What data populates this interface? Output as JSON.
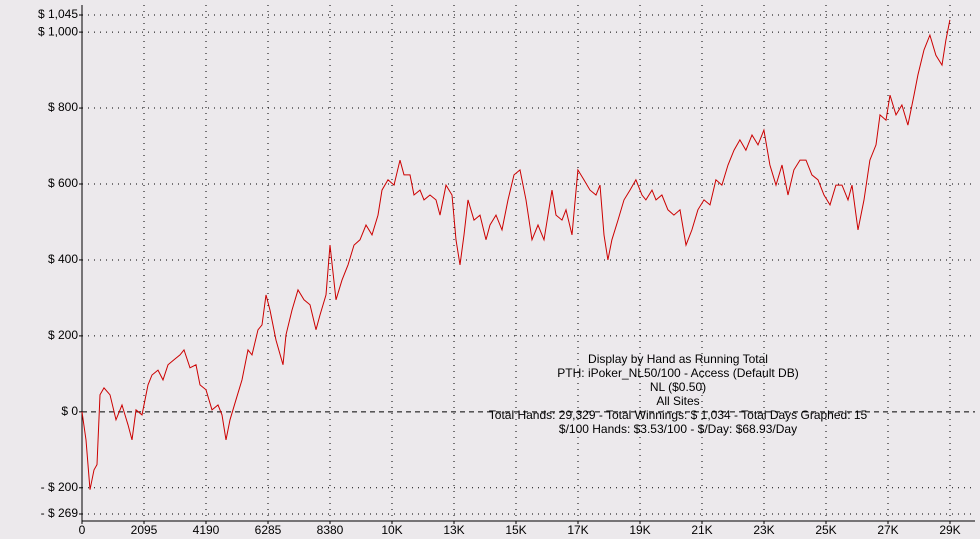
{
  "chart_data": {
    "type": "line",
    "annotation": [
      "Display by Hand as Running Total",
      "PTH: iPoker_NL50/100 - Access (Default DB)",
      "NL ($0.50)",
      "All Sites",
      "Total Hands: 29,329 - Total Winnings: $ 1,034 - Total Days Graphed: 15",
      "$/100 Hands: $3.53/100 - $/Day: $68.93/Day"
    ],
    "x": [
      0,
      135,
      270,
      406,
      507,
      608,
      743,
      946,
      1149,
      1351,
      1554,
      1689,
      1824,
      2027,
      2230,
      2365,
      2568,
      2737,
      2906,
      3109,
      3311,
      3446,
      3649,
      3852,
      3987,
      4190,
      4393,
      4595,
      4730,
      4865,
      5000,
      5203,
      5406,
      5609,
      5744,
      5947,
      6082,
      6217,
      6352,
      6555,
      6791,
      6893,
      7096,
      7298,
      7501,
      7704,
      7907,
      8042,
      8244,
      8380,
      8582,
      8785,
      8988,
      9190,
      9393,
      9596,
      9799,
      10001,
      10136,
      10339,
      10542,
      10745,
      10880,
      11082,
      11217,
      11420,
      11555,
      11758,
      11961,
      12096,
      12299,
      12501,
      12637,
      12772,
      12907,
      13042,
      13245,
      13447,
      13650,
      13785,
      13988,
      14191,
      14393,
      14596,
      14799,
      15002,
      15204,
      15407,
      15610,
      15745,
      15880,
      16015,
      16218,
      16353,
      16556,
      16758,
      16961,
      17164,
      17367,
      17502,
      17637,
      17772,
      17907,
      18110,
      18313,
      18516,
      18718,
      18921,
      19056,
      19259,
      19394,
      19596,
      19799,
      20002,
      20205,
      20408,
      20610,
      20813,
      21016,
      21219,
      21421,
      21624,
      21827,
      22030,
      22232,
      22435,
      22638,
      22841,
      23043,
      23246,
      23449,
      23652,
      23855,
      24057,
      24260,
      24463,
      24665,
      24868,
      25071,
      25274,
      25476,
      25679,
      25882,
      26017,
      26220,
      26423,
      26625,
      26828,
      26963,
      27166,
      27301,
      27504,
      27706,
      27909,
      28112,
      28247,
      28450,
      28652,
      28855,
      29058,
      29193,
      29328
    ],
    "series": [
      {
        "name": "Running Total",
        "color": "#cc0000",
        "values": [
          0,
          -74,
          -205,
          -153,
          -139,
          45,
          63,
          45,
          -21,
          18,
          -34,
          -74,
          5,
          -8,
          71,
          97,
          110,
          84,
          124,
          137,
          150,
          163,
          116,
          124,
          71,
          58,
          5,
          18,
          -8,
          -74,
          -21,
          32,
          84,
          163,
          150,
          216,
          229,
          308,
          268,
          189,
          124,
          203,
          268,
          321,
          295,
          282,
          216,
          255,
          308,
          439,
          295,
          347,
          387,
          439,
          453,
          492,
          466,
          518,
          584,
          611,
          597,
          663,
          624,
          624,
          571,
          584,
          558,
          571,
          558,
          518,
          597,
          571,
          453,
          387,
          466,
          558,
          505,
          518,
          453,
          492,
          518,
          479,
          558,
          624,
          637,
          558,
          453,
          492,
          453,
          518,
          584,
          518,
          505,
          532,
          466,
          637,
          611,
          584,
          571,
          597,
          466,
          400,
          453,
          505,
          558,
          584,
          611,
          571,
          558,
          584,
          558,
          571,
          532,
          518,
          532,
          439,
          479,
          532,
          558,
          545,
          611,
          597,
          650,
          689,
          716,
          689,
          729,
          703,
          742,
          650,
          597,
          650,
          571,
          637,
          663,
          663,
          624,
          611,
          571,
          545,
          597,
          597,
          558,
          597,
          479,
          558,
          663,
          703,
          782,
          768,
          834,
          782,
          808,
          755,
          834,
          887,
          953,
          992,
          939,
          913,
          979,
          1032
        ]
      }
    ],
    "xlim": [
      0,
      29330
    ],
    "xticks": [
      0,
      2095,
      4190,
      6285,
      8380,
      {
        "value": 10475,
        "label": "10K"
      },
      {
        "value": 12570,
        "label": "13K"
      },
      {
        "value": 14665,
        "label": "15K"
      },
      {
        "value": 16760,
        "label": "17K"
      },
      {
        "value": 18855,
        "label": "19K"
      },
      {
        "value": 20950,
        "label": "21K"
      },
      {
        "value": 23045,
        "label": "23K"
      },
      {
        "value": 25140,
        "label": "25K"
      },
      {
        "value": 27235,
        "label": "27K"
      },
      {
        "value": 29330,
        "label": "29K"
      }
    ],
    "ylim": [
      -269,
      1045
    ],
    "yticks": [
      {
        "value": 1045,
        "label": "$ 1,045"
      },
      {
        "value": 1000,
        "label": "$ 1,000"
      },
      {
        "value": 800,
        "label": "$ 800"
      },
      {
        "value": 600,
        "label": "$ 600"
      },
      {
        "value": 400,
        "label": "$ 400"
      },
      {
        "value": 200,
        "label": "$ 200"
      },
      {
        "value": 0,
        "label": "$ 0"
      },
      {
        "value": -200,
        "label": "- $ 200"
      },
      {
        "value": -269,
        "label": "- $ 269"
      }
    ],
    "grid": true
  }
}
